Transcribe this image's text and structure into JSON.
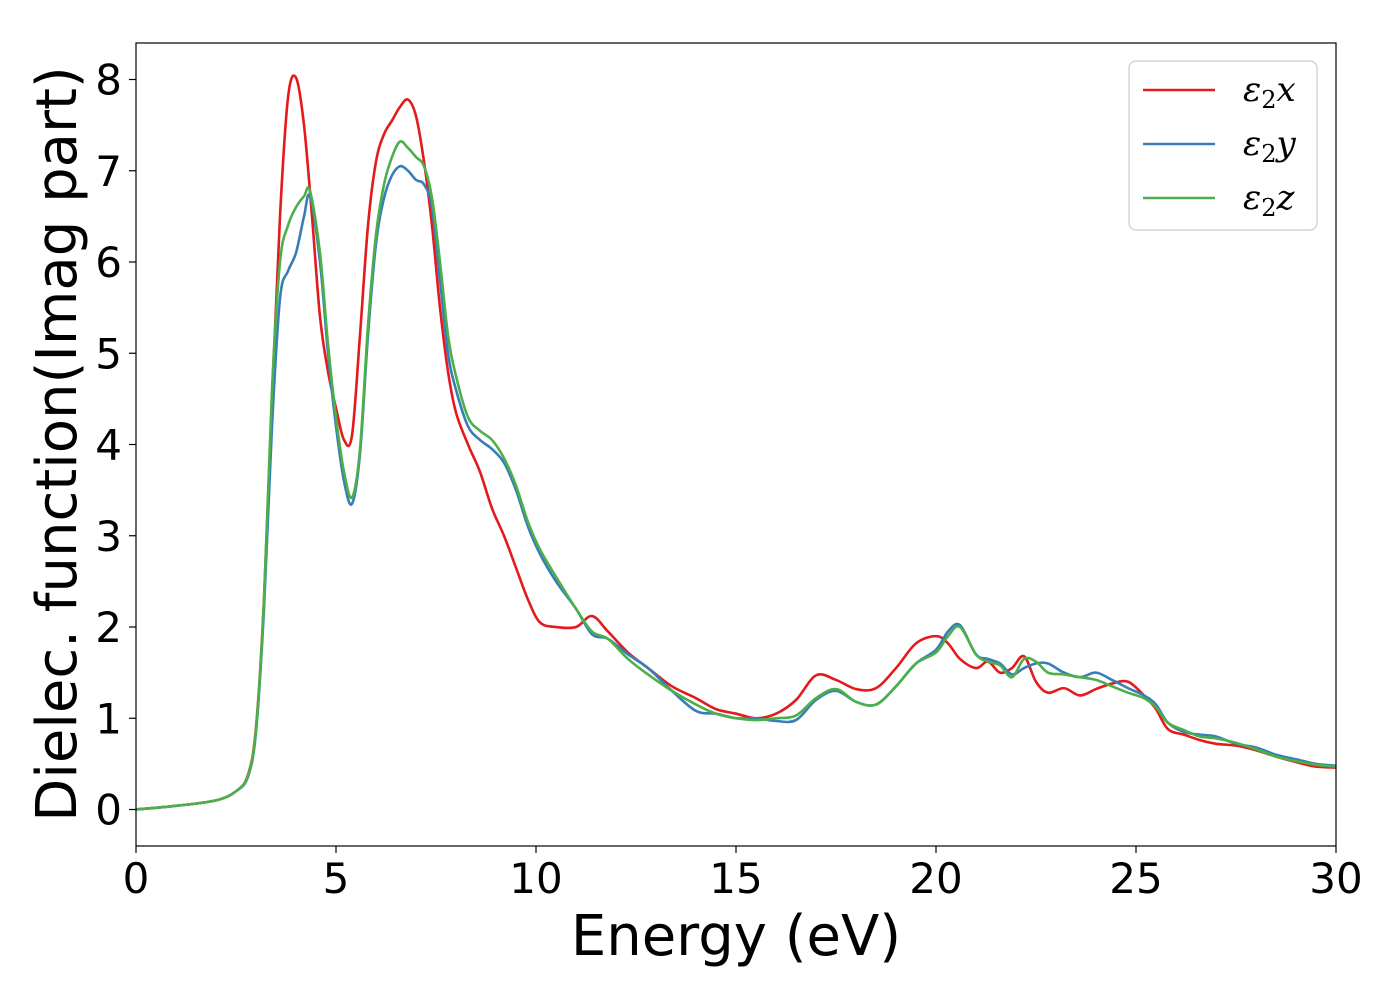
{
  "chart_data": {
    "type": "line",
    "title": "",
    "xlabel": "Energy (eV)",
    "ylabel": "Dielec. function(Imag part)",
    "xlim": [
      0,
      30
    ],
    "ylim": [
      -0.4,
      8.4
    ],
    "xticks": [
      0,
      5,
      10,
      15,
      20,
      25,
      30
    ],
    "yticks": [
      0,
      1,
      2,
      3,
      4,
      5,
      6,
      7,
      8
    ],
    "grid": false,
    "legend_position": "top-right",
    "series": [
      {
        "name": "ε2x",
        "legend": {
          "base": "ε",
          "sub": "2",
          "suffix": "x"
        },
        "color": "#e41a1c",
        "x": [
          0,
          1,
          2,
          2.5,
          2.8,
          3.0,
          3.2,
          3.4,
          3.6,
          3.8,
          4.0,
          4.2,
          4.4,
          4.6,
          4.8,
          5.0,
          5.2,
          5.4,
          5.6,
          5.8,
          6.0,
          6.2,
          6.4,
          6.6,
          6.8,
          7.0,
          7.2,
          7.4,
          7.6,
          7.8,
          8.0,
          8.3,
          8.6,
          8.9,
          9.2,
          9.5,
          9.8,
          10.1,
          10.5,
          11.0,
          11.4,
          11.8,
          12.3,
          12.8,
          13.4,
          14.0,
          14.5,
          15.0,
          15.5,
          16.0,
          16.5,
          17.0,
          17.5,
          18.0,
          18.5,
          19.0,
          19.5,
          20.0,
          20.3,
          20.6,
          21.0,
          21.3,
          21.6,
          21.9,
          22.2,
          22.5,
          22.8,
          23.2,
          23.6,
          24.0,
          24.4,
          24.8,
          25.2,
          25.5,
          25.8,
          26.2,
          26.6,
          27.0,
          27.5,
          28.0,
          28.5,
          29.0,
          29.5,
          30.0
        ],
        "y": [
          0.0,
          0.04,
          0.1,
          0.2,
          0.38,
          0.9,
          2.3,
          4.5,
          6.5,
          7.8,
          8.02,
          7.5,
          6.5,
          5.4,
          4.8,
          4.4,
          4.05,
          4.1,
          5.2,
          6.4,
          7.1,
          7.4,
          7.55,
          7.7,
          7.78,
          7.6,
          7.1,
          6.4,
          5.5,
          4.8,
          4.35,
          4.0,
          3.7,
          3.3,
          3.0,
          2.65,
          2.3,
          2.05,
          2.0,
          2.0,
          2.12,
          1.95,
          1.72,
          1.55,
          1.35,
          1.22,
          1.1,
          1.05,
          1.0,
          1.05,
          1.2,
          1.47,
          1.42,
          1.32,
          1.33,
          1.55,
          1.82,
          1.9,
          1.82,
          1.65,
          1.55,
          1.62,
          1.5,
          1.55,
          1.68,
          1.4,
          1.28,
          1.33,
          1.25,
          1.32,
          1.38,
          1.4,
          1.25,
          1.1,
          0.88,
          0.82,
          0.76,
          0.72,
          0.7,
          0.65,
          0.58,
          0.52,
          0.47,
          0.46
        ]
      },
      {
        "name": "ε2y",
        "legend": {
          "base": "ε",
          "sub": "2",
          "suffix": "y"
        },
        "color": "#377eb8",
        "x": [
          0,
          1,
          2,
          2.5,
          2.8,
          3.0,
          3.2,
          3.4,
          3.6,
          3.8,
          4.0,
          4.2,
          4.35,
          4.6,
          4.8,
          5.0,
          5.2,
          5.4,
          5.6,
          5.8,
          6.0,
          6.2,
          6.4,
          6.6,
          6.8,
          7.0,
          7.2,
          7.4,
          7.6,
          7.8,
          8.0,
          8.3,
          8.6,
          8.9,
          9.2,
          9.5,
          9.8,
          10.1,
          10.5,
          11.0,
          11.4,
          11.8,
          12.3,
          12.8,
          13.4,
          14.0,
          14.5,
          15.0,
          15.5,
          16.0,
          16.5,
          17.0,
          17.5,
          18.0,
          18.5,
          19.0,
          19.5,
          20.0,
          20.3,
          20.6,
          21.0,
          21.3,
          21.6,
          21.9,
          22.2,
          22.5,
          22.8,
          23.2,
          23.6,
          24.0,
          24.4,
          24.8,
          25.2,
          25.5,
          25.8,
          26.2,
          26.6,
          27.0,
          27.5,
          28.0,
          28.5,
          29.0,
          29.5,
          30.0
        ],
        "y": [
          0.0,
          0.04,
          0.1,
          0.2,
          0.36,
          0.85,
          2.2,
          4.2,
          5.6,
          5.9,
          6.1,
          6.5,
          6.72,
          6.0,
          5.0,
          4.2,
          3.6,
          3.35,
          3.9,
          5.2,
          6.2,
          6.7,
          6.95,
          7.05,
          7.0,
          6.9,
          6.85,
          6.6,
          5.8,
          5.0,
          4.6,
          4.2,
          4.05,
          3.95,
          3.8,
          3.5,
          3.1,
          2.8,
          2.5,
          2.2,
          1.92,
          1.87,
          1.7,
          1.55,
          1.3,
          1.08,
          1.05,
          1.0,
          1.0,
          0.97,
          0.98,
          1.2,
          1.3,
          1.18,
          1.15,
          1.35,
          1.6,
          1.75,
          1.95,
          2.02,
          1.7,
          1.65,
          1.6,
          1.48,
          1.55,
          1.6,
          1.6,
          1.5,
          1.45,
          1.5,
          1.42,
          1.33,
          1.25,
          1.15,
          0.95,
          0.85,
          0.82,
          0.8,
          0.72,
          0.68,
          0.6,
          0.55,
          0.5,
          0.48
        ]
      },
      {
        "name": "ε2z",
        "legend": {
          "base": "ε",
          "sub": "2",
          "suffix": "z"
        },
        "color": "#4daf4a",
        "x": [
          0,
          1,
          2,
          2.5,
          2.8,
          3.0,
          3.2,
          3.4,
          3.6,
          3.8,
          4.0,
          4.2,
          4.35,
          4.6,
          4.8,
          5.0,
          5.2,
          5.4,
          5.6,
          5.8,
          6.0,
          6.2,
          6.4,
          6.6,
          6.8,
          7.0,
          7.2,
          7.4,
          7.6,
          7.8,
          8.0,
          8.3,
          8.6,
          8.9,
          9.2,
          9.5,
          9.8,
          10.1,
          10.5,
          11.0,
          11.4,
          11.8,
          12.3,
          12.8,
          13.4,
          14.0,
          14.5,
          15.0,
          15.5,
          16.0,
          16.5,
          17.0,
          17.5,
          18.0,
          18.5,
          19.0,
          19.5,
          20.0,
          20.3,
          20.6,
          21.0,
          21.3,
          21.6,
          21.9,
          22.2,
          22.5,
          22.8,
          23.2,
          23.6,
          24.0,
          24.4,
          24.8,
          25.2,
          25.5,
          25.8,
          26.2,
          26.6,
          27.0,
          27.5,
          28.0,
          28.5,
          29.0,
          29.5,
          30.0
        ],
        "y": [
          0.0,
          0.04,
          0.1,
          0.2,
          0.37,
          0.88,
          2.3,
          4.6,
          6.0,
          6.4,
          6.6,
          6.72,
          6.78,
          6.1,
          5.1,
          4.3,
          3.7,
          3.42,
          3.95,
          5.3,
          6.3,
          6.85,
          7.15,
          7.32,
          7.25,
          7.15,
          7.05,
          6.7,
          6.0,
          5.2,
          4.75,
          4.3,
          4.15,
          4.05,
          3.85,
          3.55,
          3.15,
          2.85,
          2.55,
          2.2,
          1.95,
          1.87,
          1.65,
          1.48,
          1.3,
          1.15,
          1.05,
          1.0,
          0.98,
          1.0,
          1.03,
          1.22,
          1.32,
          1.18,
          1.15,
          1.35,
          1.6,
          1.72,
          1.9,
          2.0,
          1.7,
          1.62,
          1.58,
          1.45,
          1.65,
          1.62,
          1.5,
          1.48,
          1.45,
          1.42,
          1.35,
          1.28,
          1.22,
          1.12,
          0.95,
          0.87,
          0.8,
          0.78,
          0.73,
          0.66,
          0.58,
          0.53,
          0.49,
          0.47
        ]
      }
    ]
  }
}
